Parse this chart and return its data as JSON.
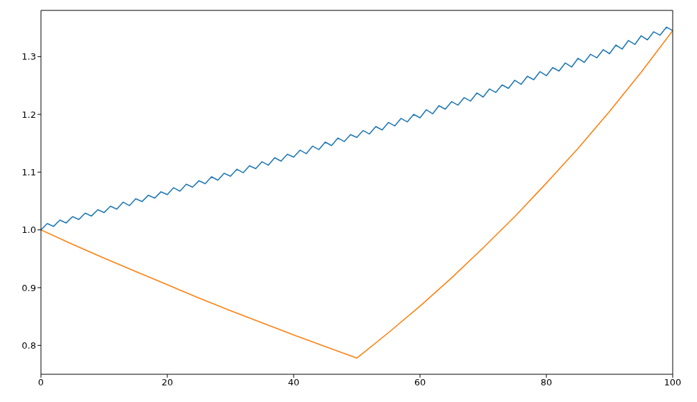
{
  "chart_data": {
    "type": "line",
    "xlim": [
      0,
      100
    ],
    "xticks": [
      0,
      20,
      40,
      60,
      80,
      100
    ],
    "ylim": [
      0.75,
      1.38
    ],
    "yticks": [
      {
        "value": 0.8,
        "label": "0.8"
      },
      {
        "value": 0.9,
        "label": "0.9"
      },
      {
        "value": 1.0,
        "label": "1.0"
      },
      {
        "value": 1.1,
        "label": "1.1"
      },
      {
        "value": 1.2,
        "label": "1.2"
      },
      {
        "value": 1.3,
        "label": "1.3"
      }
    ],
    "marker": "none",
    "line_style": "solid",
    "series": [
      {
        "color": "#1f77b4",
        "x": [
          0,
          1,
          2,
          3,
          4,
          5,
          6,
          7,
          8,
          9,
          10,
          11,
          12,
          13,
          14,
          15,
          16,
          17,
          18,
          19,
          20,
          21,
          22,
          23,
          24,
          25,
          26,
          27,
          28,
          29,
          30,
          31,
          32,
          33,
          34,
          35,
          36,
          37,
          38,
          39,
          40,
          41,
          42,
          43,
          44,
          45,
          46,
          47,
          48,
          49,
          50,
          51,
          52,
          53,
          54,
          55,
          56,
          57,
          58,
          59,
          60,
          61,
          62,
          63,
          64,
          65,
          66,
          67,
          68,
          69,
          70,
          71,
          72,
          73,
          74,
          75,
          76,
          77,
          78,
          79,
          80,
          81,
          82,
          83,
          84,
          85,
          86,
          87,
          88,
          89,
          90,
          91,
          92,
          93,
          94,
          95,
          96,
          97,
          98,
          99,
          100
        ],
        "values": [
          1.0,
          1.011,
          1.006,
          1.017,
          1.012,
          1.023,
          1.018,
          1.029,
          1.024,
          1.035,
          1.03,
          1.041,
          1.036,
          1.048,
          1.042,
          1.054,
          1.049,
          1.06,
          1.055,
          1.066,
          1.061,
          1.073,
          1.067,
          1.079,
          1.074,
          1.085,
          1.08,
          1.092,
          1.086,
          1.098,
          1.093,
          1.105,
          1.099,
          1.111,
          1.106,
          1.118,
          1.112,
          1.125,
          1.119,
          1.131,
          1.126,
          1.138,
          1.132,
          1.145,
          1.139,
          1.152,
          1.146,
          1.159,
          1.153,
          1.165,
          1.16,
          1.172,
          1.166,
          1.179,
          1.173,
          1.186,
          1.18,
          1.193,
          1.187,
          1.2,
          1.194,
          1.208,
          1.201,
          1.215,
          1.209,
          1.222,
          1.216,
          1.229,
          1.223,
          1.237,
          1.23,
          1.244,
          1.238,
          1.251,
          1.245,
          1.259,
          1.252,
          1.266,
          1.26,
          1.274,
          1.267,
          1.281,
          1.275,
          1.289,
          1.282,
          1.297,
          1.29,
          1.304,
          1.298,
          1.312,
          1.305,
          1.32,
          1.313,
          1.328,
          1.321,
          1.336,
          1.329,
          1.343,
          1.337,
          1.351,
          1.345
        ]
      },
      {
        "color": "#ff7f0e",
        "x": [
          0,
          5,
          10,
          15,
          20,
          25,
          30,
          35,
          40,
          45,
          50,
          55,
          60,
          65,
          70,
          75,
          80,
          85,
          90,
          95,
          100
        ],
        "values": [
          1.0,
          0.975,
          0.951,
          0.928,
          0.905,
          0.882,
          0.86,
          0.839,
          0.818,
          0.798,
          0.778,
          0.822,
          0.868,
          0.917,
          0.969,
          1.023,
          1.081,
          1.141,
          1.205,
          1.273,
          1.345
        ]
      }
    ]
  }
}
